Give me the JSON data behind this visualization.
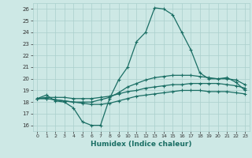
{
  "xlabel": "Humidex (Indice chaleur)",
  "xlim": [
    -0.5,
    23.5
  ],
  "ylim": [
    15.5,
    26.5
  ],
  "yticks": [
    16,
    17,
    18,
    19,
    20,
    21,
    22,
    23,
    24,
    25,
    26
  ],
  "xticks": [
    0,
    1,
    2,
    3,
    4,
    5,
    6,
    7,
    8,
    9,
    10,
    11,
    12,
    13,
    14,
    15,
    16,
    17,
    18,
    19,
    20,
    21,
    22,
    23
  ],
  "bg_color": "#cde8e5",
  "grid_color": "#aacfcc",
  "line_color": "#1a6e64",
  "line1": [
    18.3,
    18.6,
    18.1,
    18.0,
    17.5,
    16.3,
    16.0,
    16.0,
    18.3,
    19.9,
    21.0,
    23.2,
    24.0,
    26.1,
    26.0,
    25.5,
    24.0,
    22.5,
    20.5,
    20.0,
    20.0,
    20.1,
    19.7,
    19.0
  ],
  "line2": [
    18.3,
    18.3,
    18.2,
    18.1,
    18.0,
    18.0,
    18.0,
    18.2,
    18.4,
    18.8,
    19.3,
    19.6,
    19.9,
    20.1,
    20.2,
    20.3,
    20.3,
    20.3,
    20.2,
    20.1,
    20.0,
    20.0,
    19.9,
    19.5
  ],
  "line3": [
    18.3,
    18.4,
    18.4,
    18.4,
    18.3,
    18.3,
    18.3,
    18.4,
    18.5,
    18.7,
    18.9,
    19.0,
    19.2,
    19.3,
    19.4,
    19.5,
    19.5,
    19.6,
    19.6,
    19.6,
    19.6,
    19.5,
    19.4,
    19.2
  ],
  "line4": [
    18.3,
    18.3,
    18.2,
    18.1,
    18.0,
    17.9,
    17.8,
    17.8,
    17.9,
    18.1,
    18.3,
    18.5,
    18.6,
    18.7,
    18.8,
    18.9,
    19.0,
    19.0,
    19.0,
    18.9,
    18.9,
    18.9,
    18.8,
    18.7
  ]
}
